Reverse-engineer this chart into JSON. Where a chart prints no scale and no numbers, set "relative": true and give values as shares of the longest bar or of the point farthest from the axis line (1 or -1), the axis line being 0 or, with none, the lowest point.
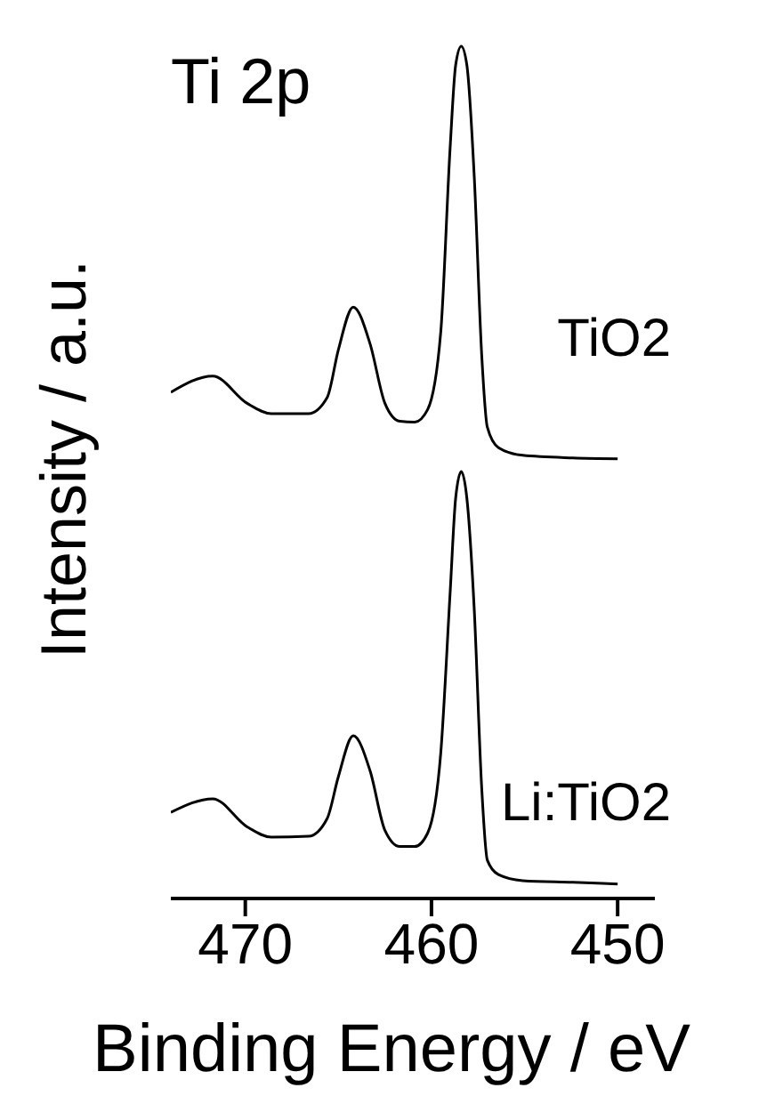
{
  "chart_data": {
    "type": "line",
    "title": "Ti 2p",
    "xlabel": "Binding Energy / eV",
    "ylabel": "Intensity / a.u.",
    "relative": true,
    "legend": false,
    "grid": false,
    "marker": "none",
    "line_style": "solid",
    "xlim": [
      474,
      448
    ],
    "xticks": [
      470,
      460,
      450
    ],
    "x": [
      474.0,
      471.75,
      469.9,
      468.6,
      466.6,
      465.6,
      465.0,
      464.2,
      463.3,
      462.5,
      461.7,
      460.9,
      460.2,
      459.5,
      459.0,
      458.7,
      458.4,
      458.1,
      457.7,
      457.3,
      457.0,
      456.4,
      455.1,
      452.4,
      450.0
    ],
    "series": [
      {
        "name": "TiO2",
        "color": "#000000",
        "values": [
          0.594,
          0.613,
          0.581,
          0.569,
          0.569,
          0.588,
          0.644,
          0.694,
          0.651,
          0.581,
          0.56,
          0.559,
          0.574,
          0.665,
          0.88,
          0.978,
          1.0,
          0.978,
          0.846,
          0.637,
          0.553,
          0.529,
          0.52,
          0.517,
          0.516
        ]
      },
      {
        "name": "Li:TiO2",
        "color": "#000000",
        "values": [
          0.101,
          0.117,
          0.084,
          0.072,
          0.073,
          0.094,
          0.143,
          0.191,
          0.15,
          0.08,
          0.061,
          0.061,
          0.077,
          0.171,
          0.358,
          0.47,
          0.501,
          0.47,
          0.338,
          0.129,
          0.045,
          0.028,
          0.021,
          0.019,
          0.017
        ]
      }
    ]
  }
}
